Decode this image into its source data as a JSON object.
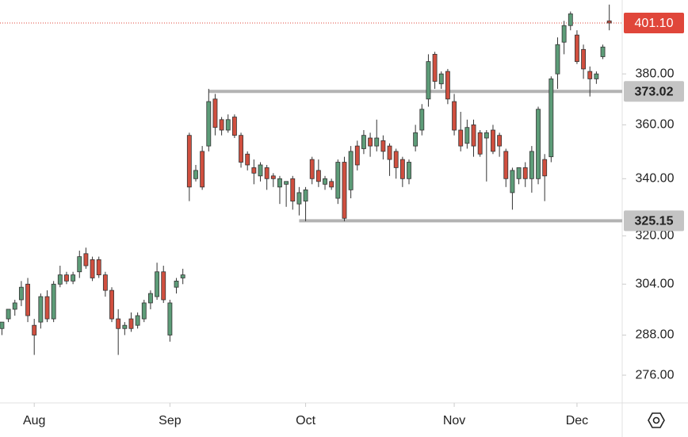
{
  "chart_data": {
    "type": "candlestick",
    "x": [
      0,
      1,
      2,
      3,
      4,
      5,
      6,
      7,
      8,
      9,
      10,
      11,
      12,
      13,
      14,
      15,
      16,
      17,
      18,
      19,
      20,
      21,
      22,
      23,
      24,
      25,
      26,
      27,
      28,
      29,
      30,
      31,
      32,
      33,
      34,
      35,
      36,
      37,
      38,
      39,
      40,
      41,
      42,
      43,
      44,
      45,
      46,
      47,
      48,
      49,
      50,
      51,
      52,
      53,
      54,
      55,
      56,
      57,
      58,
      59,
      60,
      61,
      62,
      63,
      64,
      65,
      66,
      67,
      68,
      69,
      70,
      71,
      72,
      73,
      74,
      75,
      76,
      77,
      78,
      79,
      80,
      81,
      82,
      83,
      84,
      85,
      86,
      87,
      88,
      89,
      90,
      91,
      92,
      93,
      94
    ],
    "open": [
      290,
      293,
      296,
      299,
      304,
      291,
      292,
      300,
      293,
      304,
      307,
      305,
      308,
      314,
      312,
      312,
      307,
      302,
      293,
      290,
      293,
      291,
      293,
      298,
      300,
      308,
      288,
      303,
      306,
      356,
      340,
      350,
      352,
      370,
      362,
      358,
      363,
      356,
      349,
      344,
      341,
      344,
      341,
      337,
      338,
      340,
      331,
      332,
      347,
      343,
      338,
      339,
      333,
      346,
      336,
      352,
      351,
      355,
      352,
      354,
      352,
      350,
      347,
      340,
      352,
      358,
      370,
      388,
      376,
      381,
      369,
      358,
      353,
      360,
      357,
      355,
      358,
      356,
      350,
      335,
      340,
      344,
      340,
      340,
      347,
      348,
      380,
      393,
      400,
      396,
      390,
      381,
      378,
      387,
      402
    ],
    "high": [
      292,
      296,
      299,
      305,
      306,
      293,
      301,
      302,
      305,
      310,
      308,
      308,
      315,
      316,
      313,
      313,
      308,
      303,
      296,
      292,
      295,
      295,
      299,
      302,
      311,
      310,
      299,
      306,
      309,
      357,
      345,
      352,
      374,
      372,
      363,
      364,
      364,
      357,
      350,
      347,
      346,
      345,
      342,
      341,
      339,
      341,
      337,
      337,
      348,
      347,
      341,
      340,
      347,
      348,
      352,
      354,
      358,
      357,
      362,
      356,
      353,
      351,
      348,
      347,
      360,
      368,
      388,
      389,
      381,
      382,
      372,
      365,
      362,
      362,
      358,
      358,
      360,
      357,
      351,
      344,
      344,
      346,
      352,
      367,
      349,
      379,
      395,
      402,
      406,
      398,
      392,
      383,
      381,
      392,
      409
    ],
    "low": [
      288,
      292,
      294,
      297,
      292,
      282,
      290,
      292,
      292,
      303,
      304,
      304,
      306,
      309,
      305,
      306,
      300,
      292,
      282,
      288,
      289,
      290,
      292,
      296,
      299,
      298,
      286,
      301,
      304,
      332,
      339,
      336,
      350,
      356,
      356,
      357,
      355,
      344,
      343,
      338,
      339,
      336,
      337,
      331,
      330,
      329,
      327,
      325,
      338,
      337,
      336,
      336,
      331,
      325,
      333,
      343,
      349,
      348,
      350,
      347,
      341,
      340,
      337,
      338,
      350,
      356,
      367,
      374,
      374,
      368,
      356,
      350,
      351,
      348,
      348,
      339,
      349,
      348,
      337,
      329,
      338,
      337,
      335,
      338,
      332,
      346,
      374,
      388,
      398,
      384,
      378,
      371,
      376,
      386,
      398
    ],
    "close": [
      292,
      296,
      298,
      303,
      294,
      288,
      300,
      293,
      304,
      307,
      305,
      307,
      313,
      310,
      306,
      307,
      302,
      293,
      290,
      291,
      290,
      294,
      298,
      301,
      308,
      299,
      298,
      305,
      307,
      337,
      343,
      337,
      369,
      359,
      358,
      362,
      356,
      346,
      345,
      342,
      345,
      340,
      340,
      340,
      339,
      332,
      335,
      336,
      340,
      339,
      340,
      337,
      346,
      326,
      350,
      345,
      356,
      352,
      355,
      350,
      347,
      344,
      340,
      346,
      357,
      366,
      385,
      377,
      380,
      370,
      358,
      352,
      359,
      352,
      349,
      357,
      350,
      352,
      340,
      343,
      344,
      340,
      350,
      366,
      341,
      378,
      392,
      400,
      405,
      385,
      382,
      378,
      380,
      391,
      401.1
    ],
    "up_color": "#5d9c78",
    "down_color": "#d04f3f",
    "xlim": [
      -0.3,
      96
    ],
    "xticks": [
      {
        "value": 5,
        "label": "Aug"
      },
      {
        "value": 26,
        "label": "Sep"
      },
      {
        "value": 47,
        "label": "Oct"
      },
      {
        "value": 70,
        "label": "Nov"
      },
      {
        "value": 89,
        "label": "Dec"
      }
    ],
    "ylim": [
      268,
      411
    ],
    "log_scale": true,
    "yticks": [
      {
        "value": 276,
        "label": "276.00"
      },
      {
        "value": 288,
        "label": "288.00"
      },
      {
        "value": 304,
        "label": "304.00"
      },
      {
        "value": 320,
        "label": "320.00"
      },
      {
        "value": 340,
        "label": "340.00"
      },
      {
        "value": 360,
        "label": "360.00"
      },
      {
        "value": 380,
        "label": "380.00"
      }
    ],
    "levels": [
      {
        "value": 373.02,
        "x": 32
      },
      {
        "value": 325.15,
        "x": 46
      }
    ],
    "last_price": {
      "value": 401.1,
      "label": "401.10",
      "color": "#e0463a"
    }
  }
}
